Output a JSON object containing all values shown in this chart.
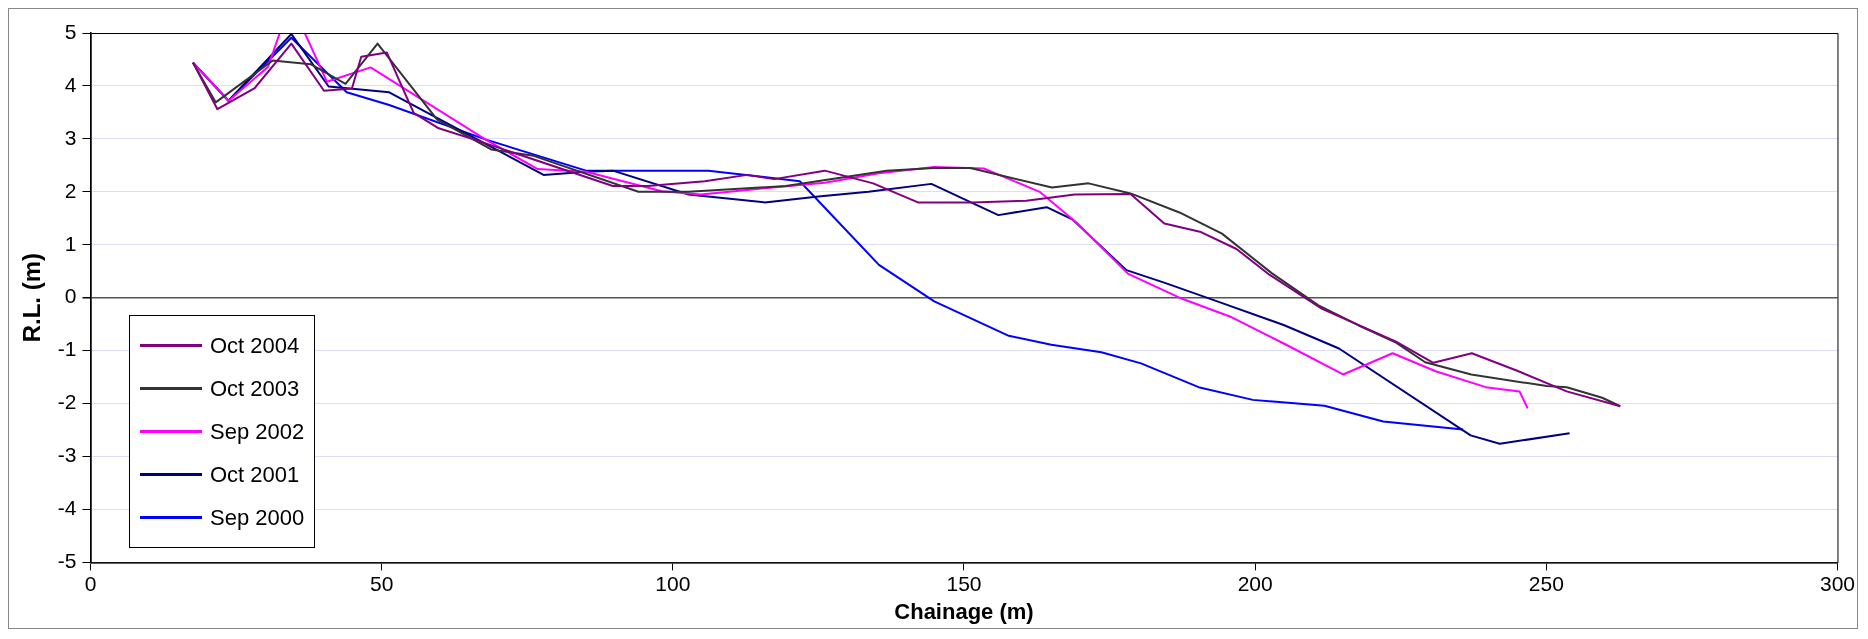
{
  "chart_data": {
    "type": "line",
    "xlabel": "Chainage (m)",
    "ylabel": "R.L. (m)",
    "xlim": [
      0,
      300
    ],
    "xticks": [
      0,
      50,
      100,
      150,
      200,
      250,
      300
    ],
    "ylim": [
      -5,
      5
    ],
    "yticks": [
      -5,
      -4,
      -3,
      -2,
      -1,
      0,
      1,
      2,
      3,
      4,
      5
    ],
    "grid": "y",
    "legend": "bottom left",
    "marker": "none",
    "line_style": "solid",
    "series": [
      {
        "name": "Oct 2004",
        "color": "#800080",
        "x": [
          17.6,
          21.8,
          28.2,
          34.5,
          40.1,
          44.9,
          46.5,
          50.9,
          55.5,
          59.8,
          65.8,
          77.8,
          89.7,
          95.7,
          105.5,
          112.8,
          117.4,
          126.1,
          134.4,
          142.1,
          151.4,
          160.7,
          169,
          178.6,
          184.4,
          190.7,
          196.8,
          202.5,
          211.5,
          224.2,
          230.6,
          237.2,
          245,
          253.5,
          262.7
        ],
        "values": [
          4.44,
          3.56,
          3.96,
          4.8,
          3.91,
          3.95,
          4.55,
          4.63,
          3.49,
          3.2,
          2.99,
          2.55,
          2.11,
          2.11,
          2.2,
          2.32,
          2.24,
          2.4,
          2.16,
          1.8,
          1.8,
          1.83,
          1.95,
          1.96,
          1.4,
          1.24,
          0.92,
          0.43,
          -0.21,
          -0.83,
          -1.23,
          -1.05,
          -1.38,
          -1.77,
          -2.05
        ]
      },
      {
        "name": "Oct 2003",
        "color": "#333333",
        "x": [
          17.6,
          21.5,
          31.3,
          37.8,
          43.8,
          49.3,
          59.5,
          68.8,
          76.1,
          94.1,
          102.7,
          119.4,
          136.7,
          144.9,
          151.1,
          165.1,
          171.4,
          178.6,
          187,
          194.3,
          202.9,
          210.8,
          217.7,
          224.2,
          229.2,
          237.1,
          250.1,
          253.5,
          259.6,
          262.7
        ],
        "values": [
          4.44,
          3.69,
          4.48,
          4.41,
          4.04,
          4.8,
          3.37,
          2.8,
          2.68,
          2.0,
          2.0,
          2.11,
          2.4,
          2.45,
          2.45,
          2.08,
          2.16,
          1.97,
          1.61,
          1.21,
          0.46,
          -0.14,
          -0.52,
          -0.85,
          -1.22,
          -1.45,
          -1.67,
          -1.69,
          -1.89,
          -2.05
        ]
      },
      {
        "name": "Sep 2002",
        "color": "#ff00ff",
        "x": [
          17.6,
          23.7,
          30.5,
          32.5,
          36.8,
          40.6,
          48.1,
          67.8,
          76.8,
          85.1,
          98.1,
          104.8,
          114.1,
          126.1,
          135.4,
          144.9,
          153.4,
          163,
          169.4,
          178.2,
          187,
          196,
          205,
          215.1,
          223.6,
          231,
          239.6,
          245.4,
          246.8
        ],
        "values": [
          4.44,
          3.72,
          4.36,
          5.0,
          5.0,
          4.08,
          4.35,
          2.99,
          2.43,
          2.38,
          2.01,
          1.95,
          2.05,
          2.17,
          2.35,
          2.47,
          2.44,
          2.0,
          1.41,
          0.45,
          0.0,
          -0.37,
          -0.87,
          -1.45,
          -1.05,
          -1.39,
          -1.69,
          -1.77,
          -2.09
        ]
      },
      {
        "name": "Oct 2001",
        "color": "#000080",
        "x": [
          17.6,
          23.7,
          34.5,
          40.9,
          51.3,
          77.8,
          85.1,
          89.7,
          102.7,
          115.8,
          125,
          133.6,
          144.4,
          155.9,
          164.2,
          168.6,
          177.9,
          184.5,
          193.5,
          205,
          214.4,
          237,
          242,
          254
        ],
        "values": [
          4.44,
          3.72,
          4.98,
          3.99,
          3.88,
          2.32,
          2.38,
          2.4,
          1.95,
          1.8,
          1.91,
          2.0,
          2.15,
          1.56,
          1.71,
          1.48,
          0.52,
          0.28,
          -0.07,
          -0.52,
          -0.96,
          -2.6,
          -2.76,
          -2.56
        ]
      },
      {
        "name": "Sep 2000",
        "color": "#0000ff",
        "x": [
          17.6,
          23.7,
          34.5,
          44.0,
          51.3,
          67.8,
          85.1,
          89.7,
          106.1,
          121.8,
          135.4,
          144.9,
          157.7,
          165,
          173.6,
          180.4,
          190.3,
          199.6,
          211.9,
          222,
          235.7
        ],
        "values": [
          4.44,
          3.72,
          4.91,
          3.88,
          3.64,
          2.99,
          2.4,
          2.4,
          2.4,
          2.2,
          0.62,
          -0.07,
          -0.72,
          -0.89,
          -1.03,
          -1.24,
          -1.69,
          -1.93,
          -2.04,
          -2.34,
          -2.49
        ]
      }
    ]
  }
}
